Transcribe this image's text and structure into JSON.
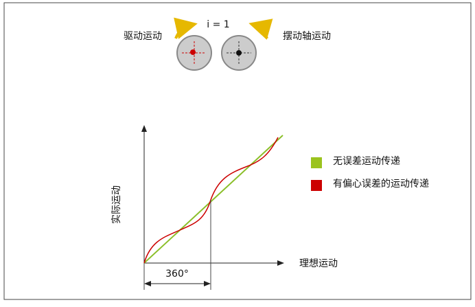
{
  "gears": {
    "ratio": "i = 1",
    "left_label": "驱动运动",
    "right_label": "摆动轴运动"
  },
  "graph": {
    "y_label": "实际运动",
    "x_label": "理想运动",
    "period": "360°"
  },
  "legend": {
    "items": [
      "无误差运动传递",
      "有偏心误差的运动传递"
    ]
  }
}
